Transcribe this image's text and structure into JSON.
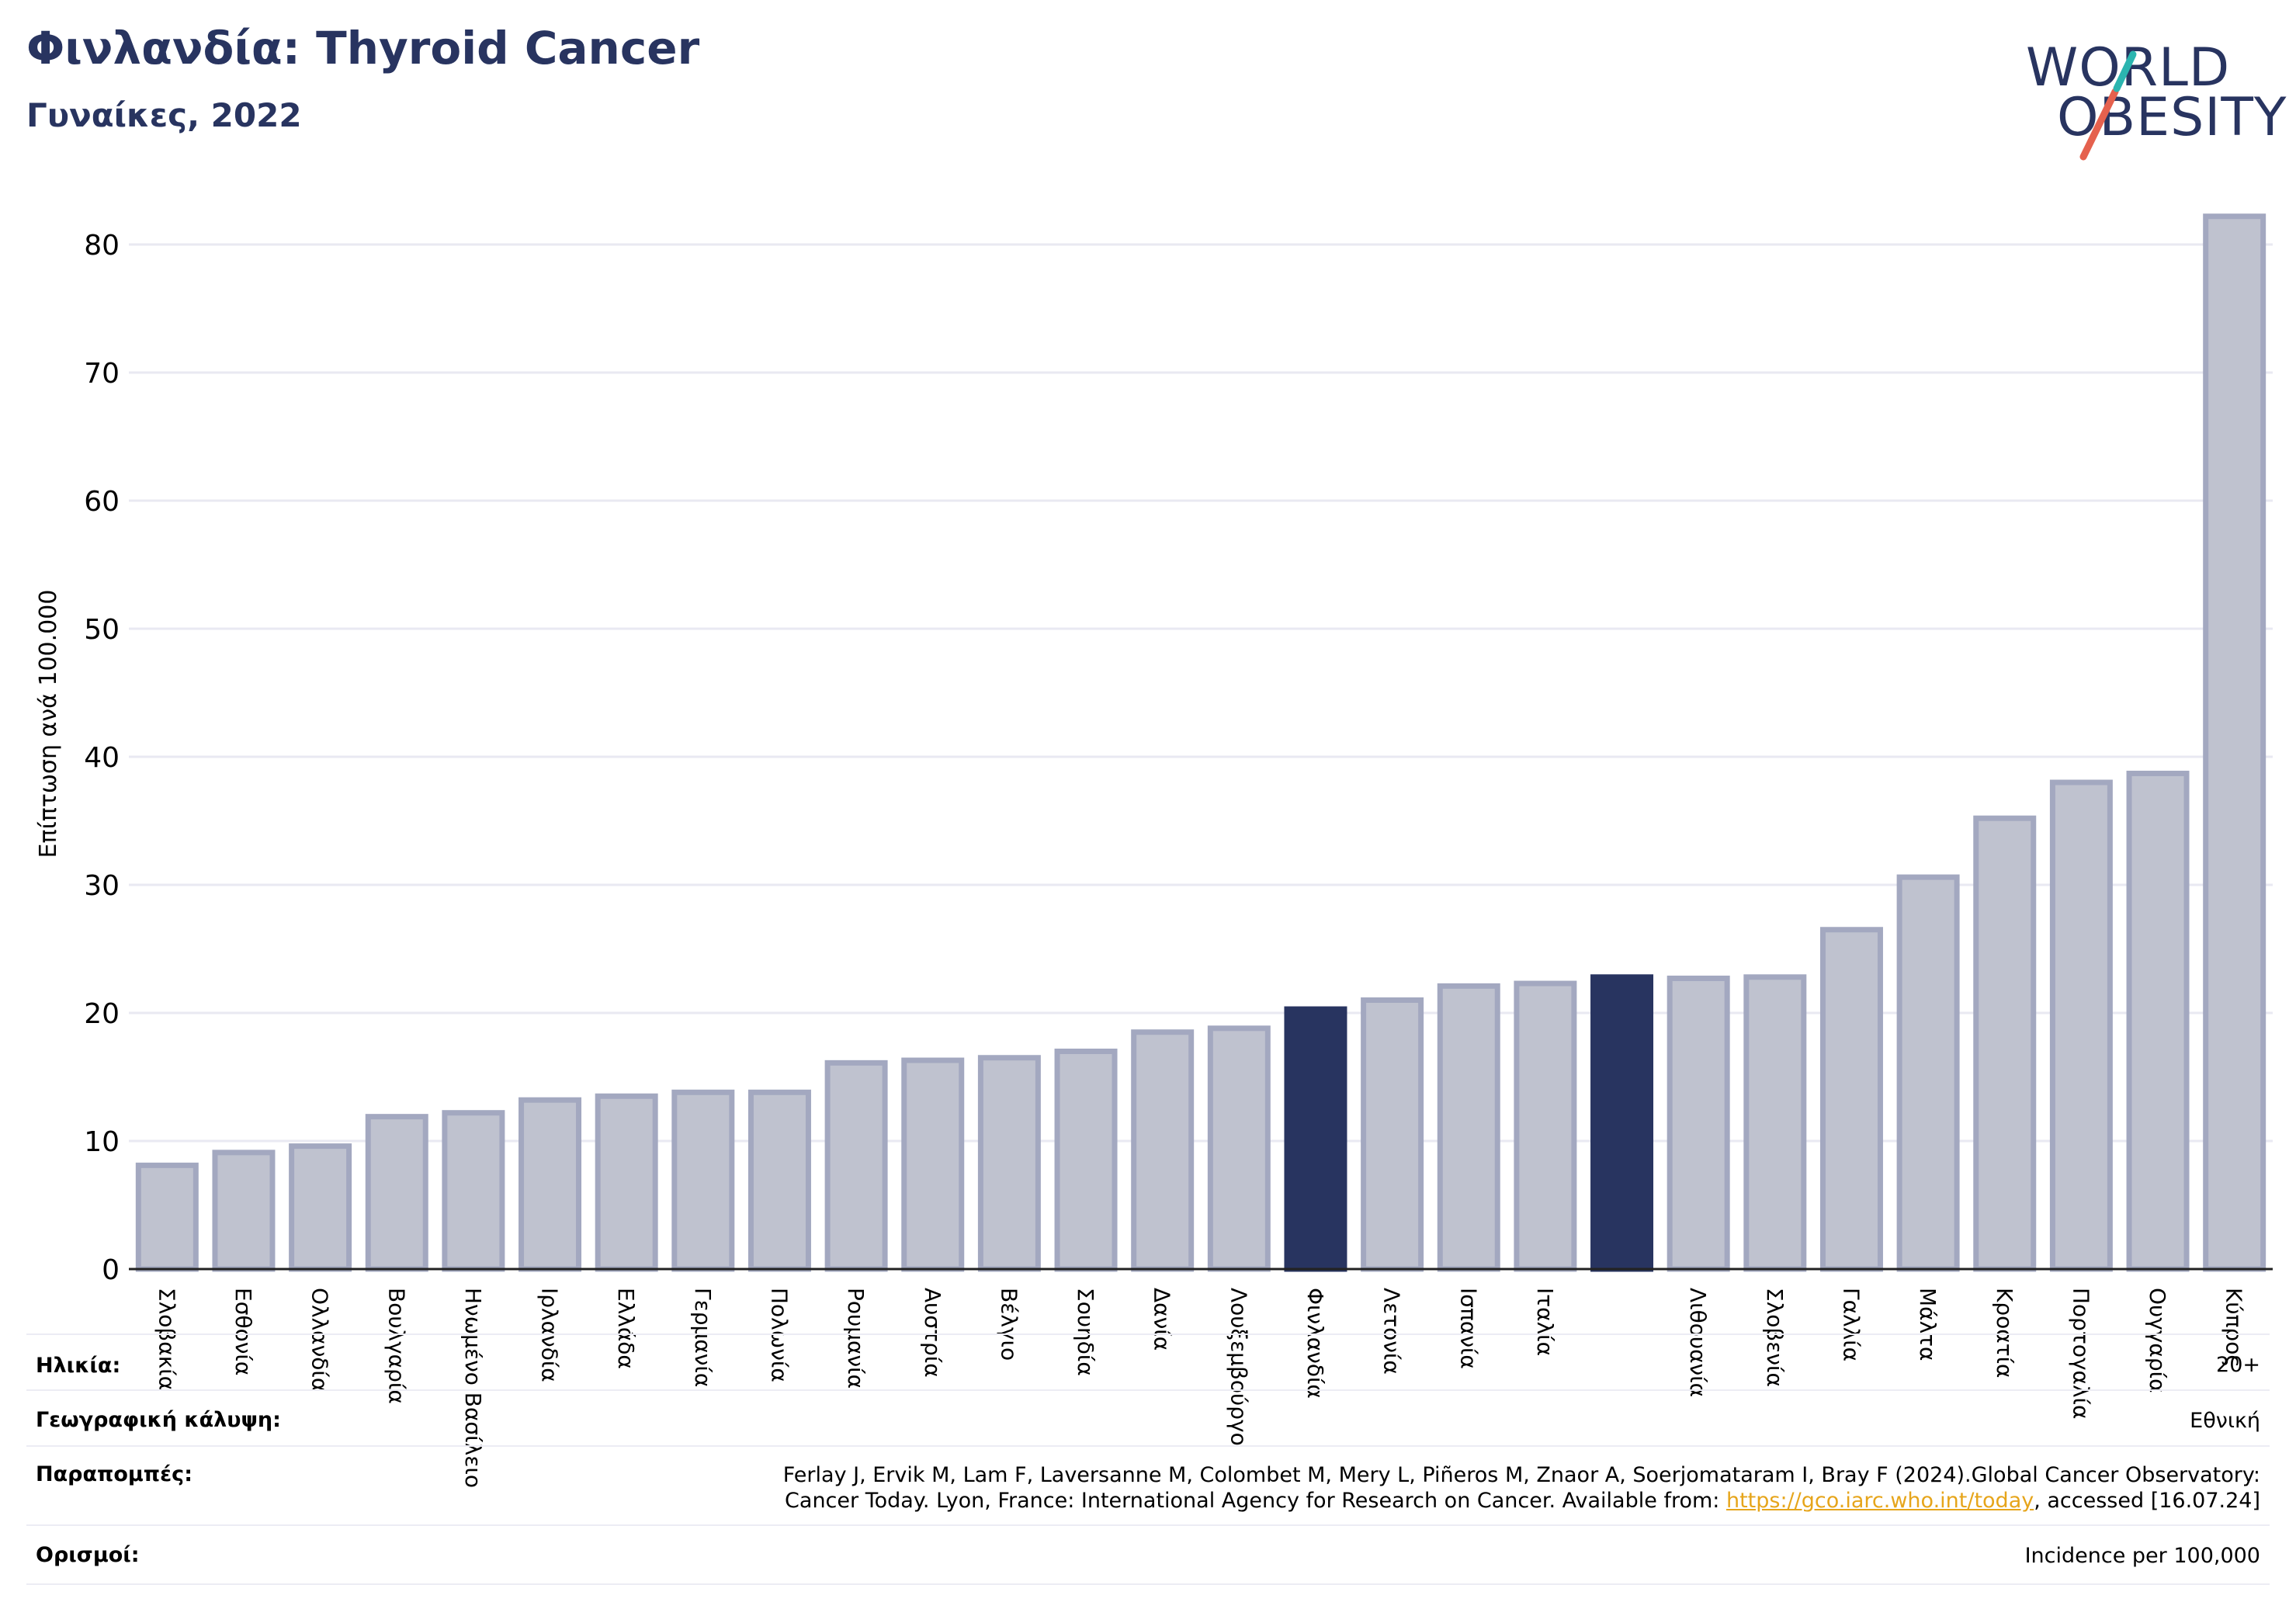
{
  "header": {
    "title": "Φινλανδία: Thyroid Cancer",
    "subtitle": "Γυναίκες, 2022"
  },
  "logo": {
    "line1": "WORLD",
    "line2": "OBESITY",
    "accent_colors": [
      "#e5614e",
      "#2bb5b0"
    ]
  },
  "colors": {
    "highlight": "#283460",
    "bar_fill": "#bfc2cf",
    "bar_stroke": "#a3a8c0",
    "grid": "#e9e9f2",
    "link": "#e6a51b"
  },
  "chart_data": {
    "type": "bar",
    "title": "",
    "xlabel": "",
    "ylabel": "Επίπτωση ανά 100.000",
    "ylim": [
      0,
      85
    ],
    "yticks": [
      0,
      10,
      20,
      30,
      40,
      50,
      60,
      70,
      80
    ],
    "grid": true,
    "categories": [
      "Σλοβακία",
      "Εσθονία",
      "Ολλανδία",
      "Βουλγαρία",
      "Ηνωμένο Βασίλειο",
      "Ιρλανδία",
      "Ελλάδα",
      "Γερμανία",
      "Πολωνία",
      "Ρουμανία",
      "Αυστρία",
      "Βέλγιο",
      "Σουηδία",
      "Δανία",
      "Λουξεμβούργο",
      "Φινλανδία",
      "Λετονία",
      "Ισπανία",
      "Ιταλία",
      "",
      "Λιθουανία",
      "Σλοβενία",
      "Γαλλία",
      "Μάλτα",
      "Κροατία",
      "Πορτογαλία",
      "Ουγγαρία",
      "Κύπρος"
    ],
    "values": [
      8.1,
      9.1,
      9.6,
      11.9,
      12.2,
      13.2,
      13.5,
      13.8,
      13.8,
      16.1,
      16.3,
      16.5,
      17.0,
      18.5,
      18.8,
      20.3,
      21.0,
      22.1,
      22.3,
      22.8,
      22.7,
      22.8,
      26.5,
      30.6,
      35.2,
      38.0,
      38.7,
      82.2
    ],
    "highlighted": [
      "Φινλανδία",
      ""
    ]
  },
  "meta": {
    "age_label": "Ηλικία:",
    "age_value": "20+",
    "coverage_label": "Γεωγραφική κάλυψη:",
    "coverage_value": "Εθνική",
    "refs_label": "Παραπομπές:",
    "refs_line1": "Ferlay J, Ervik M, Lam F, Laversanne M, Colombet M, Mery L, Piñeros M, Znaor A, Soerjomataram I, Bray F (2024).Global Cancer Observatory:",
    "refs_line2_pre": "Cancer Today. Lyon, France: International Agency for Research on Cancer. Available from: ",
    "refs_link": "https://gco.iarc.who.int/today",
    "refs_line2_post": ", accessed [16.07.24]",
    "defs_label": "Ορισμοί:",
    "defs_value": "Incidence per 100,000"
  }
}
